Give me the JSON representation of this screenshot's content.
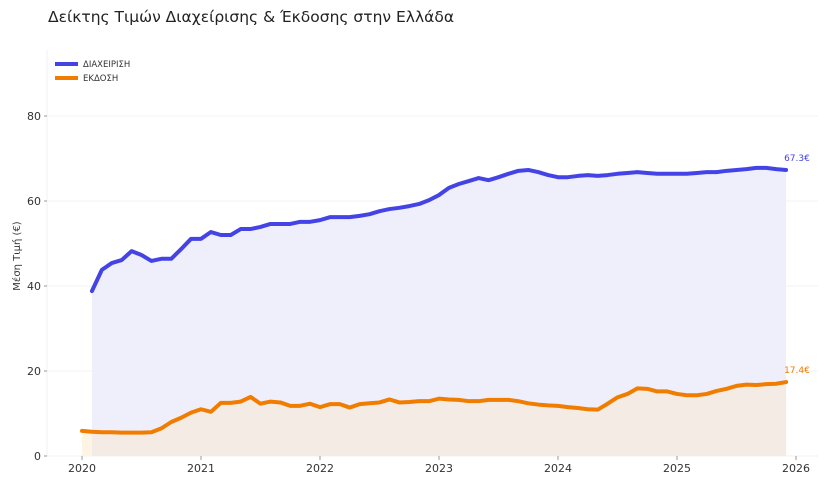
{
  "chart_data": {
    "type": "area",
    "title": "Δείκτης Τιμών Διαχείρισης & Έκδοσης στην Ελλάδα",
    "xlabel": "",
    "ylabel": "Μέση Τιμή (€)",
    "xlim": [
      "2019-10",
      "2026-03"
    ],
    "ylim": [
      0,
      95
    ],
    "xticks": [
      "2020",
      "2021",
      "2022",
      "2023",
      "2024",
      "2025",
      "2026"
    ],
    "yticks": [
      0,
      20,
      40,
      60,
      80
    ],
    "grid": true,
    "legend": "top-left",
    "x": [
      "2020-01",
      "2020-02",
      "2020-03",
      "2020-04",
      "2020-05",
      "2020-06",
      "2020-07",
      "2020-08",
      "2020-09",
      "2020-10",
      "2020-11",
      "2020-12",
      "2021-01",
      "2021-02",
      "2021-03",
      "2021-04",
      "2021-05",
      "2021-06",
      "2021-07",
      "2021-08",
      "2021-09",
      "2021-10",
      "2021-11",
      "2021-12",
      "2022-01",
      "2022-02",
      "2022-03",
      "2022-04",
      "2022-05",
      "2022-06",
      "2022-07",
      "2022-08",
      "2022-09",
      "2022-10",
      "2022-11",
      "2022-12",
      "2023-01",
      "2023-02",
      "2023-03",
      "2023-04",
      "2023-05",
      "2023-06",
      "2023-07",
      "2023-08",
      "2023-09",
      "2023-10",
      "2023-11",
      "2023-12",
      "2024-01",
      "2024-02",
      "2024-03",
      "2024-04",
      "2024-05",
      "2024-06",
      "2024-07",
      "2024-08",
      "2024-09",
      "2024-10",
      "2024-11",
      "2024-12",
      "2025-01",
      "2025-02",
      "2025-03",
      "2025-04",
      "2025-05",
      "2025-06",
      "2025-07",
      "2025-08",
      "2025-09",
      "2025-10",
      "2025-11",
      "2025-12"
    ],
    "series": [
      {
        "name": "ΔΙΑΧΕΙΡΙΣΗ",
        "color": "#4444e6",
        "fill": "#efeffb",
        "end_label": "67.3€",
        "values": [
          null,
          38.8,
          43.8,
          45.4,
          46.1,
          48.2,
          47.3,
          45.9,
          46.4,
          46.4,
          48.7,
          51.1,
          51.1,
          52.7,
          52.0,
          52.0,
          53.4,
          53.4,
          53.9,
          54.6,
          54.6,
          54.6,
          55.1,
          55.1,
          55.5,
          56.2,
          56.2,
          56.2,
          56.5,
          56.9,
          57.6,
          58.1,
          58.4,
          58.8,
          59.3,
          60.2,
          61.4,
          63.1,
          64.0,
          64.7,
          65.4,
          64.9,
          65.6,
          66.4,
          67.1,
          67.3,
          66.8,
          66.1,
          65.6,
          65.6,
          65.9,
          66.1,
          65.9,
          66.1,
          66.4,
          66.6,
          66.8,
          66.6,
          66.4,
          66.4,
          66.4,
          66.4,
          66.6,
          66.8,
          66.8,
          67.1,
          67.3,
          67.5,
          67.8,
          67.8,
          67.5,
          67.3
        ]
      },
      {
        "name": "ΕΚΔΟΣΗ",
        "color": "#f07c00",
        "fill": "#f4ece4",
        "end_label": "17.4€",
        "values": [
          5.9,
          5.7,
          5.6,
          5.6,
          5.5,
          5.5,
          5.5,
          5.6,
          6.5,
          8.0,
          9.0,
          10.2,
          11.0,
          10.4,
          12.5,
          12.5,
          12.8,
          13.9,
          12.3,
          12.8,
          12.6,
          11.8,
          11.8,
          12.3,
          11.5,
          12.2,
          12.2,
          11.4,
          12.2,
          12.4,
          12.6,
          13.3,
          12.6,
          12.7,
          12.9,
          12.9,
          13.5,
          13.3,
          13.2,
          12.9,
          12.9,
          13.2,
          13.2,
          13.2,
          12.9,
          12.4,
          12.1,
          11.9,
          11.8,
          11.5,
          11.3,
          11.0,
          10.9,
          12.3,
          13.8,
          14.6,
          15.9,
          15.8,
          15.2,
          15.2,
          14.6,
          14.3,
          14.3,
          14.6,
          15.3,
          15.8,
          16.5,
          16.8,
          16.7,
          16.9,
          17.0,
          17.4
        ]
      }
    ]
  }
}
